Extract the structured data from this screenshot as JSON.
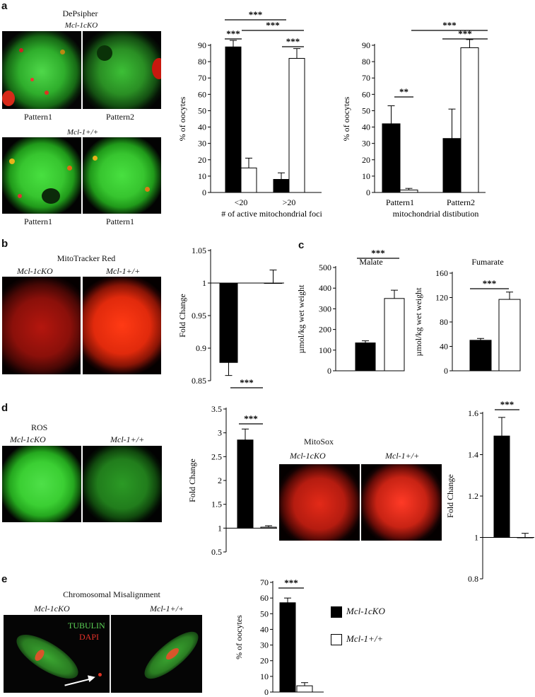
{
  "panel_a": {
    "label": "a",
    "title": "DePsipher",
    "ko_label": "Mcl-1cKO",
    "wt_label": "Mcl-1+/+",
    "img_caption_1": "Pattern1",
    "img_caption_2": "Pattern2",
    "img_caption_3": "Pattern1",
    "img_caption_4": "Pattern1"
  },
  "panel_b": {
    "label": "b",
    "title": "MitoTracker Red",
    "ko_label": "Mcl-1cKO",
    "wt_label": "Mcl-1+/+"
  },
  "panel_c": {
    "label": "c"
  },
  "panel_d": {
    "label": "d",
    "ros_title": "ROS",
    "mitosox_title": "MitoSox",
    "ko_label": "Mcl-1cKO",
    "wt_label": "Mcl-1+/+"
  },
  "panel_e": {
    "label": "e",
    "title": "Chromosomal Misalignment",
    "ko_label": "Mcl-1cKO",
    "wt_label": "Mcl-1+/+",
    "tubulin_label": "TUBULIN",
    "dapi_label": "DAPI"
  },
  "legend": {
    "ko_label": "Mcl-1cKO",
    "wt_label": "Mcl-1+/+",
    "ko_color": "#000000",
    "wt_color": "#ffffff"
  },
  "chart_data": [
    {
      "id": "a1",
      "type": "bar",
      "categories": [
        "<20",
        ">20"
      ],
      "series": [
        {
          "values": [
            89,
            8
          ],
          "errors": [
            4,
            4
          ],
          "color": "#000000"
        },
        {
          "values": [
            15,
            82
          ],
          "errors": [
            6,
            6
          ],
          "color": "#ffffff"
        }
      ],
      "xlabel": "# of active mitochondrial foci",
      "ylabel": "% of oocytes",
      "ylim": [
        0,
        90
      ],
      "yticks": [
        0,
        10,
        20,
        30,
        40,
        50,
        60,
        70,
        80,
        90
      ],
      "annotations": [
        "***",
        "***",
        "***",
        "***"
      ]
    },
    {
      "id": "a2",
      "type": "bar",
      "categories": [
        "Pattern1",
        "Pattern2"
      ],
      "series": [
        {
          "values": [
            42,
            33
          ],
          "errors": [
            11,
            18
          ],
          "color": "#000000"
        },
        {
          "values": [
            1.5,
            88.5
          ],
          "errors": [
            1,
            5
          ],
          "color": "#ffffff"
        }
      ],
      "xlabel": "mitochondrial distibution",
      "ylabel": "% of oocytes",
      "ylim": [
        0,
        90
      ],
      "yticks": [
        0,
        10,
        20,
        30,
        40,
        50,
        60,
        70,
        80,
        90
      ],
      "annotations": [
        "**",
        "***",
        "***"
      ]
    },
    {
      "id": "b",
      "type": "bar",
      "categories": [
        "Mcl-1cKO",
        "Mcl-1+/+"
      ],
      "series": [
        {
          "values": [
            0.878,
            1.0
          ],
          "errors": [
            0.02,
            0.02
          ]
        }
      ],
      "ylabel": "Fold Change",
      "ylim": [
        0.85,
        1.05
      ],
      "yticks": [
        "0.85",
        "0.9",
        "0.95",
        "1",
        "1.05"
      ],
      "annotations": [
        "***"
      ]
    },
    {
      "id": "c1",
      "type": "bar",
      "title": "Malate",
      "categories": [
        "Mcl-1cKO",
        "Mcl-1+/+"
      ],
      "series": [
        {
          "values": [
            135,
            350
          ],
          "errors": [
            10,
            40
          ]
        }
      ],
      "ylabel": "µmol/kg wet weight",
      "ylim": [
        0,
        500
      ],
      "yticks": [
        0,
        100,
        200,
        300,
        400,
        500
      ],
      "annotations": [
        "***"
      ]
    },
    {
      "id": "c2",
      "type": "bar",
      "title": "Fumarate",
      "categories": [
        "Mcl-1cKO",
        "Mcl-1+/+"
      ],
      "series": [
        {
          "values": [
            50,
            117
          ],
          "errors": [
            3,
            12
          ]
        }
      ],
      "ylabel": "µmol/kg wet weight",
      "ylim": [
        0,
        160
      ],
      "yticks": [
        0,
        40,
        80,
        120,
        160
      ],
      "annotations": [
        "***"
      ]
    },
    {
      "id": "d1",
      "type": "bar",
      "categories": [
        "Mcl-1cKO",
        "Mcl-1+/+"
      ],
      "series": [
        {
          "values": [
            2.85,
            1.02
          ],
          "errors": [
            0.23,
            0.03
          ]
        }
      ],
      "ylabel": "Fold Change",
      "ylim": [
        0.5,
        3.5
      ],
      "yticks": [
        "0.5",
        "1",
        "1.5",
        "2",
        "2.5",
        "3",
        "3.5"
      ],
      "annotations": [
        "***"
      ]
    },
    {
      "id": "d2",
      "type": "bar",
      "categories": [
        "Mcl-1cKO",
        "Mcl-1+/+"
      ],
      "series": [
        {
          "values": [
            1.49,
            1.0
          ],
          "errors": [
            0.09,
            0.02
          ]
        }
      ],
      "ylabel": "Fold Change",
      "ylim": [
        0.8,
        1.6
      ],
      "yticks": [
        "0.8",
        "1",
        "1.2",
        "1.4",
        "1.6"
      ],
      "annotations": [
        "***"
      ]
    },
    {
      "id": "e",
      "type": "bar",
      "categories": [
        "Mcl-1cKO",
        "Mcl-1+/+"
      ],
      "series": [
        {
          "values": [
            57,
            4
          ],
          "errors": [
            3,
            2
          ]
        }
      ],
      "ylabel": "% of oocytes",
      "ylim": [
        0,
        70
      ],
      "yticks": [
        0,
        10,
        20,
        30,
        40,
        50,
        60,
        70
      ],
      "annotations": [
        "***"
      ]
    }
  ]
}
